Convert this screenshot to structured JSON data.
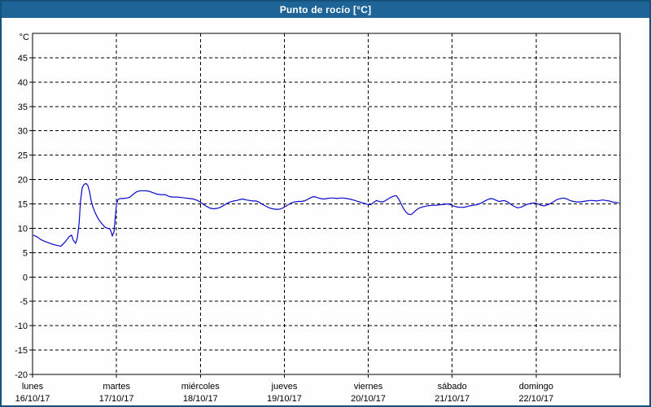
{
  "window": {
    "title": "Punto de rocío [°C]",
    "title_bar_color": "#1f6497",
    "border_color": "#14527c",
    "background": "#fdfefd"
  },
  "chart_data": {
    "type": "line",
    "title": "Punto de rocío [°C]",
    "y_unit_label": "°C",
    "grid": "dashed",
    "line_color": "#0a0acc",
    "x_axis": {
      "total_hours": 168,
      "hours_per_day": 24,
      "day_labels": [
        {
          "name": "lunes",
          "date": "16/10/17"
        },
        {
          "name": "martes",
          "date": "17/10/17"
        },
        {
          "name": "miércoles",
          "date": "18/10/17"
        },
        {
          "name": "jueves",
          "date": "19/10/17"
        },
        {
          "name": "viernes",
          "date": "20/10/17"
        },
        {
          "name": "sábado",
          "date": "21/10/17"
        },
        {
          "name": "domingo",
          "date": "22/10/17"
        }
      ]
    },
    "y_axis": {
      "min": -20,
      "max": 50,
      "label_min": -20,
      "label_max": 45,
      "tick_step": 5
    },
    "series": [
      {
        "name": "Punto de rocío",
        "color": "#0a0acc",
        "points": [
          [
            0.2,
            8.6
          ],
          [
            1.4,
            8.2
          ],
          [
            2.3,
            7.7
          ],
          [
            3.5,
            7.3
          ],
          [
            4.7,
            7.0
          ],
          [
            5.8,
            6.7
          ],
          [
            7.0,
            6.5
          ],
          [
            8.1,
            6.3
          ],
          [
            9.3,
            7.2
          ],
          [
            10.5,
            8.3
          ],
          [
            11.2,
            8.6
          ],
          [
            11.6,
            7.6
          ],
          [
            12.3,
            6.9
          ],
          [
            12.8,
            8.0
          ],
          [
            13.3,
            11.0
          ],
          [
            13.7,
            15.5
          ],
          [
            14.2,
            18.3
          ],
          [
            14.7,
            19.0
          ],
          [
            15.3,
            19.2
          ],
          [
            15.8,
            18.8
          ],
          [
            16.3,
            17.5
          ],
          [
            16.7,
            15.8
          ],
          [
            17.2,
            14.5
          ],
          [
            17.9,
            13.2
          ],
          [
            18.6,
            12.2
          ],
          [
            19.3,
            11.4
          ],
          [
            20.0,
            10.8
          ],
          [
            20.7,
            10.2
          ],
          [
            21.4,
            10.0
          ],
          [
            22.1,
            9.9
          ],
          [
            22.6,
            9.0
          ],
          [
            22.8,
            8.4
          ],
          [
            23.3,
            9.3
          ],
          [
            23.5,
            11.0
          ],
          [
            24.0,
            14.8
          ],
          [
            24.4,
            15.9
          ],
          [
            25.1,
            16.1
          ],
          [
            26.0,
            16.1
          ],
          [
            27.0,
            16.2
          ],
          [
            27.9,
            16.4
          ],
          [
            28.8,
            17.0
          ],
          [
            29.8,
            17.5
          ],
          [
            30.9,
            17.7
          ],
          [
            32.1,
            17.7
          ],
          [
            33.3,
            17.6
          ],
          [
            34.4,
            17.3
          ],
          [
            35.6,
            17.0
          ],
          [
            36.7,
            16.9
          ],
          [
            37.9,
            16.9
          ],
          [
            39.1,
            16.5
          ],
          [
            40.2,
            16.4
          ],
          [
            41.4,
            16.4
          ],
          [
            42.6,
            16.3
          ],
          [
            43.7,
            16.2
          ],
          [
            44.9,
            16.1
          ],
          [
            46.0,
            16.0
          ],
          [
            47.2,
            15.7
          ],
          [
            48.1,
            15.3
          ],
          [
            49.1,
            14.8
          ],
          [
            50.0,
            14.4
          ],
          [
            50.9,
            14.1
          ],
          [
            51.9,
            14.0
          ],
          [
            52.8,
            14.1
          ],
          [
            53.7,
            14.3
          ],
          [
            54.7,
            14.7
          ],
          [
            55.6,
            15.1
          ],
          [
            56.5,
            15.4
          ],
          [
            57.5,
            15.6
          ],
          [
            58.4,
            15.7
          ],
          [
            59.3,
            15.9
          ],
          [
            60.2,
            16.0
          ],
          [
            61.2,
            15.8
          ],
          [
            62.1,
            15.7
          ],
          [
            63.0,
            15.6
          ],
          [
            64.0,
            15.6
          ],
          [
            64.9,
            15.3
          ],
          [
            65.8,
            14.9
          ],
          [
            66.8,
            14.5
          ],
          [
            67.7,
            14.2
          ],
          [
            68.6,
            14.0
          ],
          [
            69.6,
            13.9
          ],
          [
            70.5,
            13.9
          ],
          [
            71.4,
            14.1
          ],
          [
            72.3,
            14.5
          ],
          [
            73.3,
            14.9
          ],
          [
            74.0,
            15.2
          ],
          [
            74.9,
            15.4
          ],
          [
            75.8,
            15.5
          ],
          [
            76.8,
            15.5
          ],
          [
            77.7,
            15.6
          ],
          [
            78.6,
            15.9
          ],
          [
            79.6,
            16.3
          ],
          [
            80.5,
            16.5
          ],
          [
            81.4,
            16.3
          ],
          [
            82.3,
            16.1
          ],
          [
            83.3,
            16.0
          ],
          [
            84.2,
            16.1
          ],
          [
            85.1,
            16.2
          ],
          [
            86.1,
            16.2
          ],
          [
            87.0,
            16.1
          ],
          [
            87.9,
            16.2
          ],
          [
            88.9,
            16.2
          ],
          [
            89.8,
            16.1
          ],
          [
            90.7,
            16.0
          ],
          [
            91.7,
            15.8
          ],
          [
            92.6,
            15.6
          ],
          [
            93.5,
            15.4
          ],
          [
            94.4,
            15.2
          ],
          [
            95.4,
            15.0
          ],
          [
            96.1,
            14.8
          ],
          [
            96.8,
            14.9
          ],
          [
            97.7,
            15.4
          ],
          [
            98.4,
            15.7
          ],
          [
            99.1,
            15.5
          ],
          [
            99.8,
            15.4
          ],
          [
            100.5,
            15.5
          ],
          [
            101.4,
            15.9
          ],
          [
            102.3,
            16.3
          ],
          [
            103.3,
            16.6
          ],
          [
            104.0,
            16.7
          ],
          [
            104.7,
            16.0
          ],
          [
            105.4,
            15.0
          ],
          [
            106.1,
            14.0
          ],
          [
            106.8,
            13.3
          ],
          [
            107.5,
            12.9
          ],
          [
            108.2,
            12.8
          ],
          [
            108.9,
            13.2
          ],
          [
            109.8,
            13.8
          ],
          [
            110.7,
            14.2
          ],
          [
            111.7,
            14.4
          ],
          [
            112.8,
            14.6
          ],
          [
            114.0,
            14.7
          ],
          [
            115.1,
            14.7
          ],
          [
            116.3,
            14.8
          ],
          [
            117.5,
            14.9
          ],
          [
            118.6,
            15.0
          ],
          [
            119.3,
            14.9
          ],
          [
            120.3,
            14.6
          ],
          [
            121.2,
            14.4
          ],
          [
            122.1,
            14.3
          ],
          [
            123.1,
            14.3
          ],
          [
            124.0,
            14.4
          ],
          [
            124.9,
            14.6
          ],
          [
            125.9,
            14.7
          ],
          [
            126.8,
            14.8
          ],
          [
            127.7,
            15.0
          ],
          [
            128.6,
            15.3
          ],
          [
            129.6,
            15.7
          ],
          [
            130.5,
            16.0
          ],
          [
            131.4,
            16.1
          ],
          [
            132.4,
            15.8
          ],
          [
            133.3,
            15.5
          ],
          [
            134.2,
            15.6
          ],
          [
            134.9,
            15.7
          ],
          [
            135.9,
            15.4
          ],
          [
            136.8,
            14.9
          ],
          [
            137.7,
            14.5
          ],
          [
            138.7,
            14.2
          ],
          [
            139.6,
            14.3
          ],
          [
            140.5,
            14.6
          ],
          [
            141.4,
            14.9
          ],
          [
            142.4,
            15.1
          ],
          [
            143.5,
            15.2
          ],
          [
            144.5,
            15.0
          ],
          [
            145.4,
            14.7
          ],
          [
            146.3,
            14.6
          ],
          [
            147.2,
            14.8
          ],
          [
            148.2,
            15.1
          ],
          [
            149.1,
            15.5
          ],
          [
            150.0,
            15.9
          ],
          [
            151.0,
            16.1
          ],
          [
            151.9,
            16.2
          ],
          [
            152.8,
            16.0
          ],
          [
            153.7,
            15.7
          ],
          [
            154.7,
            15.5
          ],
          [
            155.6,
            15.4
          ],
          [
            156.5,
            15.4
          ],
          [
            157.5,
            15.5
          ],
          [
            158.4,
            15.6
          ],
          [
            159.3,
            15.7
          ],
          [
            160.2,
            15.7
          ],
          [
            161.2,
            15.6
          ],
          [
            162.1,
            15.7
          ],
          [
            163.0,
            15.8
          ],
          [
            164.0,
            15.7
          ],
          [
            164.9,
            15.6
          ],
          [
            165.8,
            15.4
          ],
          [
            166.8,
            15.3
          ],
          [
            167.7,
            15.2
          ]
        ]
      }
    ]
  }
}
